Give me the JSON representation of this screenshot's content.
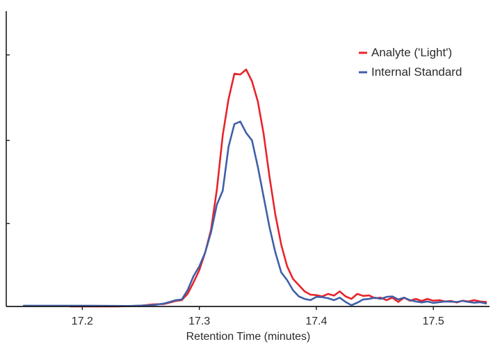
{
  "chart_data": {
    "type": "line",
    "title": "",
    "xlabel": "Retention Time (minutes)",
    "ylabel": "",
    "xlim": [
      17.135,
      17.548
    ],
    "ylim": [
      0,
      100
    ],
    "x_ticks": [
      "17.2",
      "17.3",
      "17.4",
      "17.5"
    ],
    "y_ticks": [
      33,
      66,
      100
    ],
    "grid": false,
    "legend_position": "top-right",
    "series": [
      {
        "name": "Analyte ('Light')",
        "color": "#e8232b",
        "x": [
          17.19,
          17.23,
          17.25,
          17.26,
          17.27,
          17.28,
          17.285,
          17.29,
          17.295,
          17.3,
          17.305,
          17.31,
          17.315,
          17.32,
          17.325,
          17.33,
          17.335,
          17.34,
          17.345,
          17.35,
          17.355,
          17.36,
          17.365,
          17.37,
          17.375,
          17.38,
          17.385,
          17.39,
          17.395,
          17.4,
          17.405,
          17.41,
          17.415,
          17.42,
          17.425,
          17.43,
          17.435,
          17.44,
          17.445,
          17.45,
          17.455,
          17.46,
          17.465,
          17.47,
          17.475,
          17.48,
          17.485,
          17.49,
          17.495,
          17.5,
          17.505,
          17.51,
          17.515,
          17.52,
          17.525,
          17.53,
          17.535,
          17.54,
          17.545
        ],
        "values": [
          0,
          0,
          0.3,
          0.8,
          1.0,
          2.2,
          2.5,
          5.0,
          9.5,
          14.5,
          21.5,
          30.5,
          46.5,
          68.0,
          82.5,
          92.5,
          92.2,
          94.2,
          89.5,
          81.5,
          68.5,
          51.5,
          36.5,
          24.5,
          16.0,
          11.0,
          8.5,
          6.0,
          4.7,
          4.5,
          4.0,
          5.0,
          4.3,
          6.0,
          4.0,
          3.0,
          5.0,
          4.2,
          4.4,
          3.3,
          3.5,
          2.5,
          3.5,
          1.8,
          3.5,
          2.3,
          3.0,
          2.2,
          3.0,
          2.3,
          2.5,
          2.0,
          2.2,
          1.6,
          2.3,
          2.0,
          2.5,
          2.0,
          1.8
        ]
      },
      {
        "name": "Internal Standard",
        "color": "#3f5fa8",
        "x": [
          17.15,
          17.2,
          17.24,
          17.26,
          17.27,
          17.28,
          17.285,
          17.29,
          17.295,
          17.3,
          17.305,
          17.31,
          17.315,
          17.32,
          17.325,
          17.33,
          17.335,
          17.34,
          17.345,
          17.35,
          17.355,
          17.36,
          17.365,
          17.37,
          17.375,
          17.38,
          17.385,
          17.39,
          17.395,
          17.4,
          17.405,
          17.41,
          17.415,
          17.42,
          17.425,
          17.43,
          17.435,
          17.44,
          17.445,
          17.45,
          17.455,
          17.46,
          17.465,
          17.47,
          17.475,
          17.48,
          17.485,
          17.49,
          17.495,
          17.5,
          17.505,
          17.51,
          17.515,
          17.52,
          17.525,
          17.53,
          17.535,
          17.54,
          17.545
        ],
        "values": [
          0.3,
          0.3,
          0.2,
          0.5,
          1.2,
          2.5,
          2.8,
          6.5,
          12.0,
          16.0,
          21.5,
          29.5,
          40.5,
          46.0,
          63.5,
          72.5,
          73.5,
          69.0,
          66.0,
          55.5,
          43.5,
          31.5,
          21.5,
          13.5,
          10.5,
          6.5,
          4.0,
          3.0,
          2.5,
          3.8,
          3.7,
          3.3,
          2.5,
          3.5,
          1.8,
          0.5,
          1.5,
          2.8,
          3.0,
          3.5,
          3.0,
          3.8,
          4.0,
          2.8,
          3.5,
          2.5,
          2.0,
          1.6,
          2.0,
          1.4,
          1.7,
          2.0,
          1.9,
          1.8,
          2.2,
          1.8,
          1.5,
          1.7,
          1.2
        ]
      }
    ]
  }
}
